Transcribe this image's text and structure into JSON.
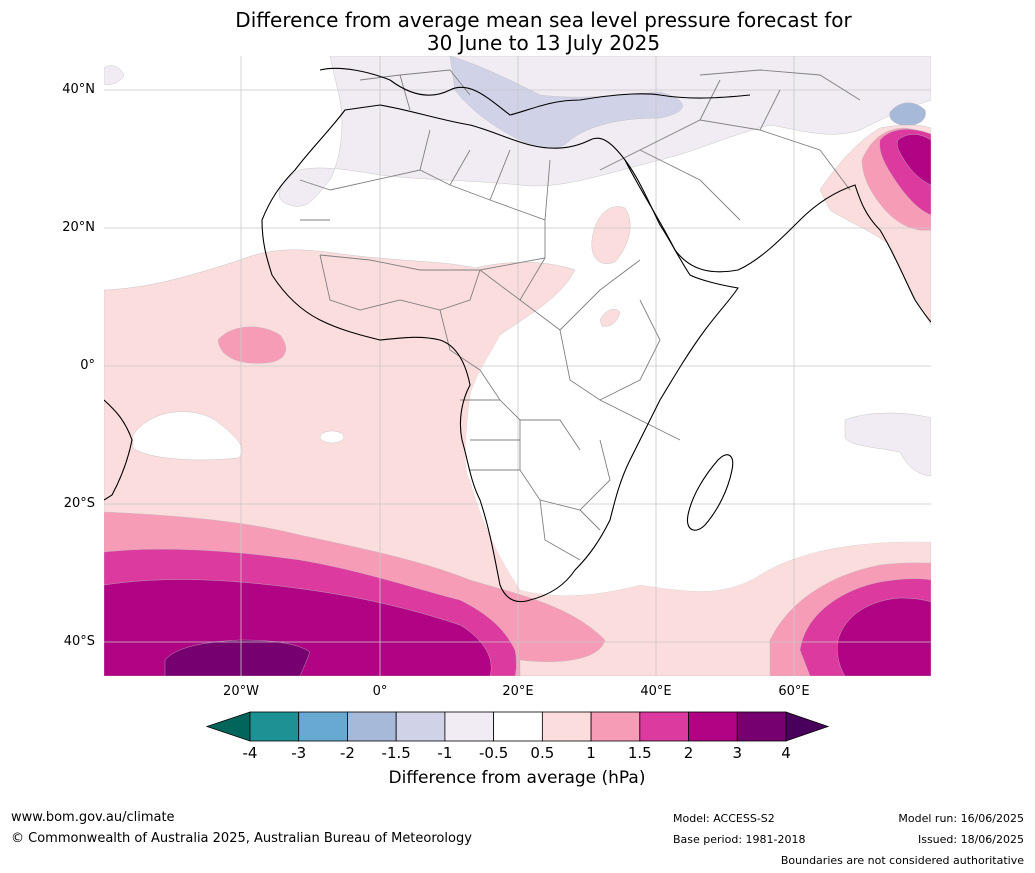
{
  "title": {
    "line1": "Difference from average mean sea level pressure forecast for",
    "line2": "30 June to 13 July 2025"
  },
  "map": {
    "lat_labels": [
      "40°N",
      "20°N",
      "0°",
      "20°S",
      "40°S"
    ],
    "lon_labels": [
      "20°W",
      "0°",
      "20°E",
      "40°E",
      "60°E"
    ],
    "colors": {
      "ocean_white": "#ffffff",
      "pos_05_1": "#fcdddd",
      "pos_1_15": "#f79cb7",
      "pos_15_2": "#dc3a9f",
      "pos_2_3": "#b10484",
      "pos_3_4": "#770070",
      "neg_05_1": "#f1ebf3",
      "neg_1_15": "#d0d2e7",
      "neg_15_2": "#a7b9d8",
      "coast": "#000000",
      "border": "#808080",
      "grid": "#c8c8c8"
    }
  },
  "colorbar": {
    "ticks": [
      "-4",
      "-3",
      "-2",
      "-1.5",
      "-1",
      "-0.5",
      "0.5",
      "1",
      "1.5",
      "2",
      "3",
      "4"
    ],
    "colors": [
      "#1d9295",
      "#68a9d1",
      "#a7b9d8",
      "#d0d2e7",
      "#f1ebf3",
      "#ffffff",
      "#fcdddd",
      "#f79cb7",
      "#dc3a9f",
      "#b10484",
      "#770070"
    ],
    "under_color": "#02655c",
    "over_color": "#49005d",
    "title": "Difference from average (hPa)"
  },
  "footer": {
    "url": "www.bom.gov.au/climate",
    "copyright": "© Commonwealth of Australia 2025, Australian Bureau of Meteorology",
    "model": "Model: ACCESS-S2",
    "base_period": "Base period: 1981-2018",
    "model_run": "Model run: 16/06/2025",
    "issued": "Issued: 18/06/2025",
    "disclaimer": "Boundaries are not considered authoritative"
  }
}
